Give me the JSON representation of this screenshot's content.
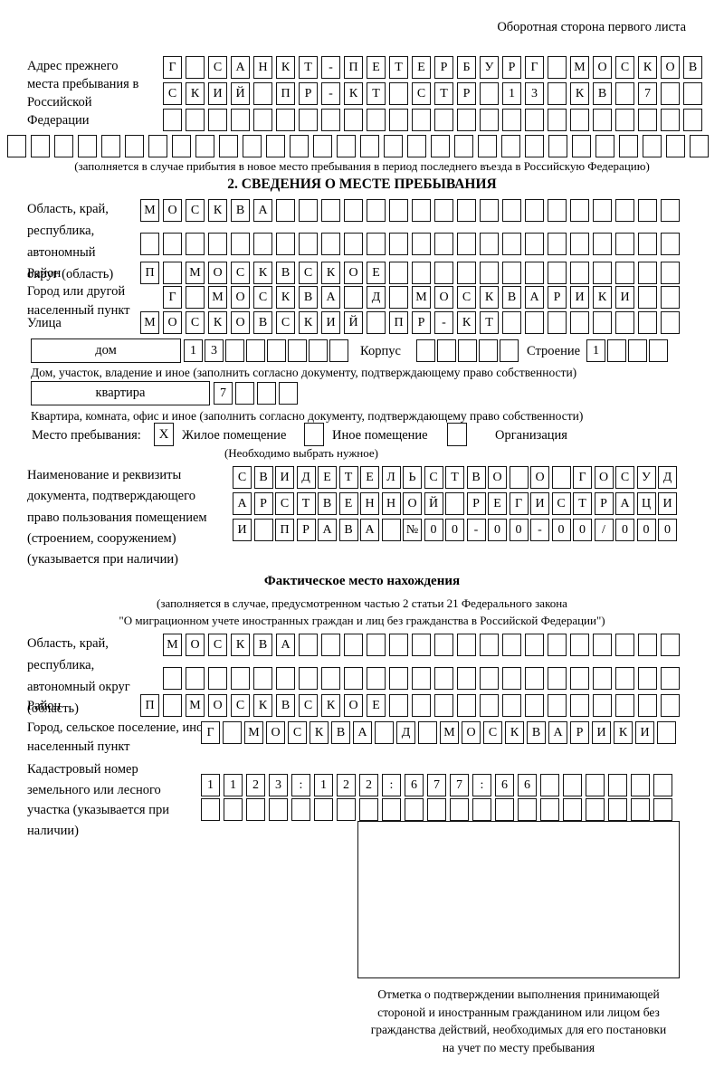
{
  "page": {
    "header_note": "Оборотная сторона первого листа"
  },
  "prev_address": {
    "label": "Адрес прежнего места пребывания в Российской Федерации",
    "rows": [
      {
        "text": "Г САНКТ-ПЕТЕРБУРГ МОСКОВ",
        "len": 24
      },
      {
        "text": "СКИЙ ПР-КТ СТР 13 КВ 7",
        "len": 24
      },
      {
        "text": "",
        "len": 24
      },
      {
        "text": "",
        "len": 30
      }
    ],
    "note": "(заполняется в случае прибытия в новое место пребывания в период последнего въезда в Российскую Федерацию)"
  },
  "section2": {
    "title": "2. СВЕДЕНИЯ О МЕСТЕ ПРЕБЫВАНИЯ",
    "region": {
      "label": "Область, край, республика, автономный округ (область)",
      "rows": [
        {
          "text": "МОСКВА",
          "len": 24
        },
        {
          "text": "",
          "len": 24
        }
      ]
    },
    "district": {
      "label": "Район",
      "row": {
        "text": "П МОСКВСКОЕ",
        "len": 24
      }
    },
    "city": {
      "label": "Город или другой населенный пункт",
      "row": {
        "text": "Г МОСКВА Д МОСКВАРИКИ",
        "len": 23
      }
    },
    "street": {
      "label": "Улица",
      "row": {
        "text": "МОСКОВСКИЙ ПР-КТ",
        "len": 24
      }
    },
    "house": {
      "box_label": "дом",
      "cells": {
        "text": "13",
        "len": 8
      },
      "korpus_label": "Корпус",
      "korpus_cells": {
        "text": "",
        "len": 5
      },
      "stroenie_label": "Строение",
      "stroenie_cells": {
        "text": "1",
        "len": 4
      },
      "note": "Дом, участок, владение и иное (заполнить согласно документу, подтверждающему право собственности)"
    },
    "apartment": {
      "box_label": "квартира",
      "cells": {
        "text": "7",
        "len": 4
      },
      "note": "Квартира, комната, офис и иное (заполнить согласно документу, подтверждающему право собственности)"
    },
    "stay_type": {
      "label": "Место пребывания:",
      "options": [
        {
          "label": "Жилое помещение",
          "mark": "X"
        },
        {
          "label": "Иное помещение",
          "mark": ""
        },
        {
          "label": "Организация",
          "mark": ""
        }
      ],
      "note": "(Необходимо выбрать нужное)"
    },
    "document": {
      "label": "Наименование и реквизиты документа, подтверждающего право пользования помещением (строением, сооружением) (указывается при наличии)",
      "rows": [
        {
          "text": "СВИДЕТЕЛЬСТВО О ГОСУД",
          "len": 21
        },
        {
          "text": "АРСТВЕННОЙ РЕГИСТРАЦИ",
          "len": 21
        },
        {
          "text": "И ПРАВА №00-00-00/000",
          "len": 21
        }
      ]
    }
  },
  "actual_location": {
    "title": "Фактическое место нахождения",
    "note_line1": "(заполняется в случае, предусмотренном частью 2 статьи 21 Федерального закона",
    "note_line2": "\"О миграционном учете иностранных граждан и лиц без гражданства в Российской Федерации\")",
    "region": {
      "label": "Область, край, республика, автономный округ (область)",
      "rows": [
        {
          "text": "МОСКВА",
          "len": 23
        },
        {
          "text": "",
          "len": 23
        }
      ]
    },
    "district": {
      "label": "Район",
      "row": {
        "text": "П МОСКВСКОЕ",
        "len": 24
      }
    },
    "city": {
      "label": "Город, сельское поселение, иной населенный пункт",
      "row": {
        "text": "Г МОСКВА Д МОСКВАРИКИ",
        "len": 22
      }
    },
    "cadastral": {
      "label": "Кадастровый номер земельного или лесного участка (указывается при наличии)",
      "rows": [
        {
          "text": "1123:122:677:66",
          "len": 21
        },
        {
          "text": "",
          "len": 21
        }
      ]
    },
    "stamp_caption_lines": [
      "Отметка о подтверждении выполнения принимающей",
      "стороной и иностранным гражданином или лицом без",
      "гражданства действий, необходимых для его постановки",
      "на учет по месту пребывания"
    ]
  }
}
